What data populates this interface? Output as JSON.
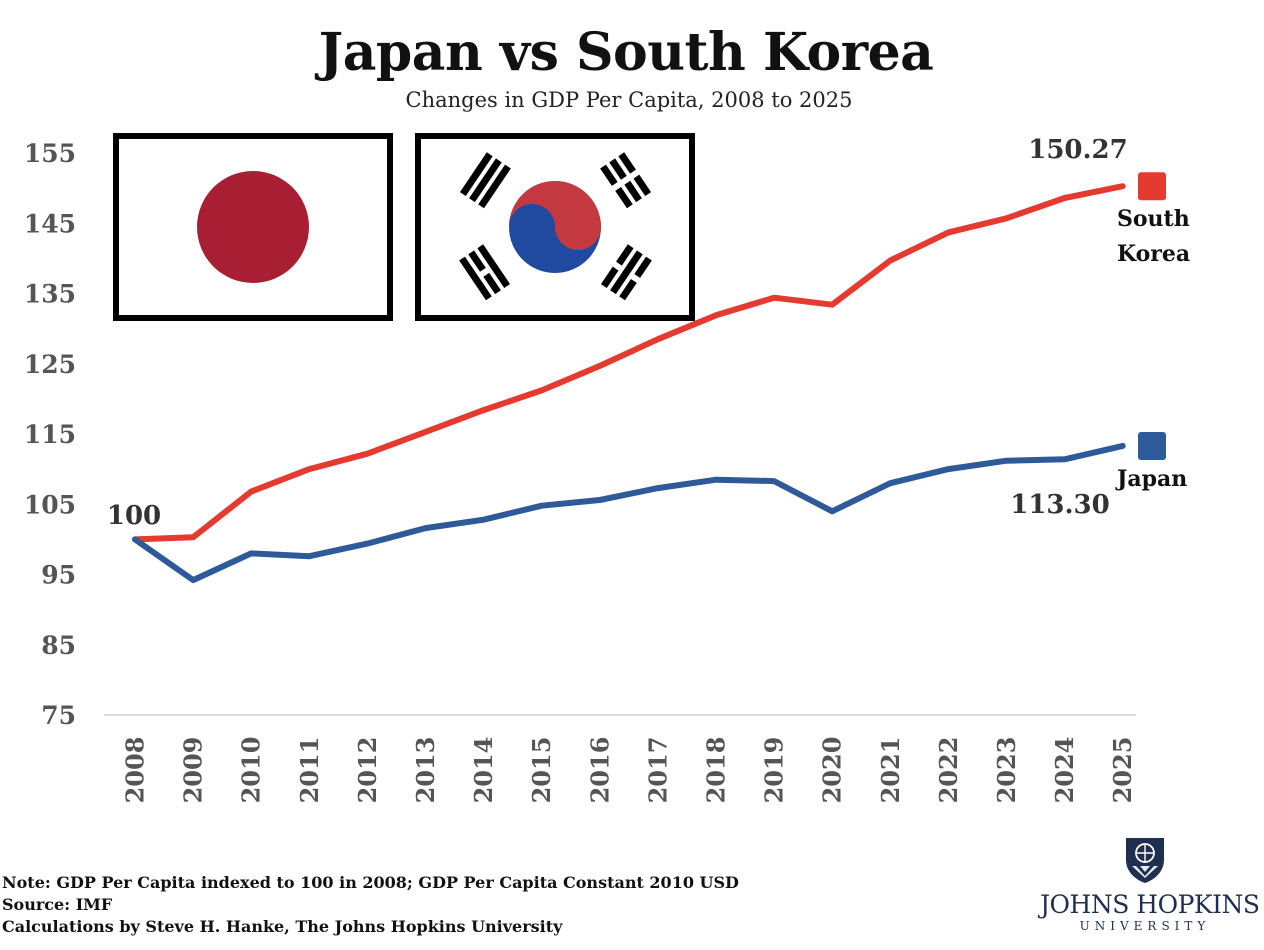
{
  "header": {
    "title": "Japan vs South Korea",
    "subtitle": "Changes in GDP Per Capita, 2008 to 2025"
  },
  "chart_data": {
    "type": "line",
    "x": [
      "2008",
      "2009",
      "2010",
      "2011",
      "2012",
      "2013",
      "2014",
      "2015",
      "2016",
      "2017",
      "2018",
      "2019",
      "2020",
      "2021",
      "2022",
      "2023",
      "2024",
      "2025"
    ],
    "ylim": [
      75,
      155
    ],
    "yticks": [
      155,
      145,
      135,
      125,
      115,
      105,
      95,
      85,
      75
    ],
    "grid": false,
    "legend": "right, at line ends",
    "series": [
      {
        "name": "South Korea",
        "legend_label_lines": [
          "South",
          "Korea"
        ],
        "color": "#e53a2f",
        "values": [
          100,
          100.3,
          106.8,
          110,
          112.2,
          115.3,
          118.4,
          121.2,
          124.7,
          128.5,
          131.9,
          134.4,
          133.4,
          139.7,
          143.7,
          145.7,
          148.6,
          150.27
        ]
      },
      {
        "name": "Japan",
        "legend_label_lines": [
          "Japan"
        ],
        "color": "#2f5a9a",
        "values": [
          100,
          94.2,
          98,
          97.6,
          99.4,
          101.6,
          102.8,
          104.8,
          105.6,
          107.3,
          108.5,
          108.3,
          104,
          108,
          110,
          111.2,
          111.4,
          113.3
        ]
      }
    ],
    "annotations": {
      "start_label": "100",
      "korea_end_label": "150.27",
      "japan_end_label": "113.30"
    }
  },
  "flags": {
    "japan": {
      "name": "japan-flag",
      "disc_color": "#a81e32"
    },
    "korea": {
      "name": "south-korea-flag",
      "red": "#c4393f",
      "blue": "#1f4aa0"
    }
  },
  "footer": {
    "note": "Note: GDP Per Capita indexed to 100 in 2008; GDP Per Capita Constant 2010 USD",
    "source": "Source: IMF",
    "credit": "Calculations by Steve H. Hanke, The Johns Hopkins University"
  },
  "logo": {
    "name": "JOHNS HOPKINS",
    "sub": "UNIVERSITY",
    "color": "#1f2f4f"
  }
}
